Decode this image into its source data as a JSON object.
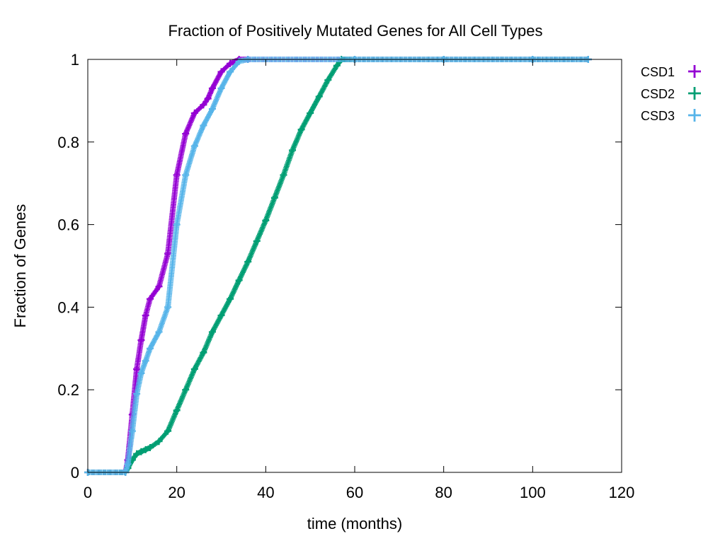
{
  "chart_data": {
    "type": "line",
    "title": "Fraction of Positively Mutated Genes for All Cell Types",
    "xlabel": "time (months)",
    "ylabel": "Fraction of Genes",
    "xlim": [
      0,
      120
    ],
    "ylim": [
      0,
      1
    ],
    "xticks": [
      {
        "value": 0,
        "label": "0"
      },
      {
        "value": 20,
        "label": "20"
      },
      {
        "value": 40,
        "label": "40"
      },
      {
        "value": 60,
        "label": "60"
      },
      {
        "value": 80,
        "label": "80"
      },
      {
        "value": 100,
        "label": "100"
      },
      {
        "value": 120,
        "label": "120"
      }
    ],
    "yticks": [
      {
        "value": 0,
        "label": "0"
      },
      {
        "value": 0.2,
        "label": "0.2"
      },
      {
        "value": 0.4,
        "label": "0.4"
      },
      {
        "value": 0.6,
        "label": "0.6"
      },
      {
        "value": 0.8,
        "label": "0.8"
      },
      {
        "value": 1,
        "label": "1"
      }
    ],
    "grid": false,
    "legend": "outside-right-top",
    "marker": "plus",
    "series": [
      {
        "name": "CSD1",
        "color": "#9400d3",
        "x": [
          0,
          8.5,
          9,
          10,
          11,
          12,
          13,
          14,
          16,
          18,
          20,
          22,
          24,
          26,
          27,
          28,
          30,
          32,
          34,
          36,
          60,
          80,
          100,
          112.5
        ],
        "y": [
          0,
          0,
          0.03,
          0.14,
          0.25,
          0.32,
          0.38,
          0.42,
          0.45,
          0.53,
          0.72,
          0.82,
          0.87,
          0.89,
          0.905,
          0.93,
          0.97,
          0.99,
          1.0,
          1.0,
          1.0,
          1.0,
          1.0,
          1.0
        ]
      },
      {
        "name": "CSD2",
        "color": "#009e73",
        "x": [
          0,
          8.5,
          9,
          10,
          11,
          12,
          13,
          14,
          16,
          18,
          20,
          22,
          24,
          26,
          28,
          30,
          32,
          34,
          36,
          38,
          40,
          42,
          44,
          46,
          48,
          50,
          52,
          54,
          56,
          57,
          60,
          80,
          100,
          112.5
        ],
        "y": [
          0,
          0,
          0.01,
          0.03,
          0.045,
          0.05,
          0.055,
          0.06,
          0.075,
          0.1,
          0.15,
          0.2,
          0.25,
          0.29,
          0.34,
          0.38,
          0.42,
          0.465,
          0.51,
          0.56,
          0.61,
          0.665,
          0.72,
          0.78,
          0.83,
          0.87,
          0.91,
          0.95,
          0.985,
          1.0,
          1.0,
          1.0,
          1.0,
          1.0
        ]
      },
      {
        "name": "CSD3",
        "color": "#56b4e9",
        "x": [
          0,
          8.5,
          9,
          10,
          11,
          12,
          13,
          14,
          16,
          18,
          20,
          22,
          24,
          26,
          28,
          30,
          32,
          34,
          36,
          60,
          80,
          100,
          112.5
        ],
        "y": [
          0,
          0,
          0.02,
          0.1,
          0.19,
          0.24,
          0.27,
          0.3,
          0.34,
          0.4,
          0.6,
          0.72,
          0.79,
          0.84,
          0.88,
          0.93,
          0.97,
          0.995,
          1.0,
          1.0,
          1.0,
          1.0,
          1.0
        ]
      }
    ]
  }
}
